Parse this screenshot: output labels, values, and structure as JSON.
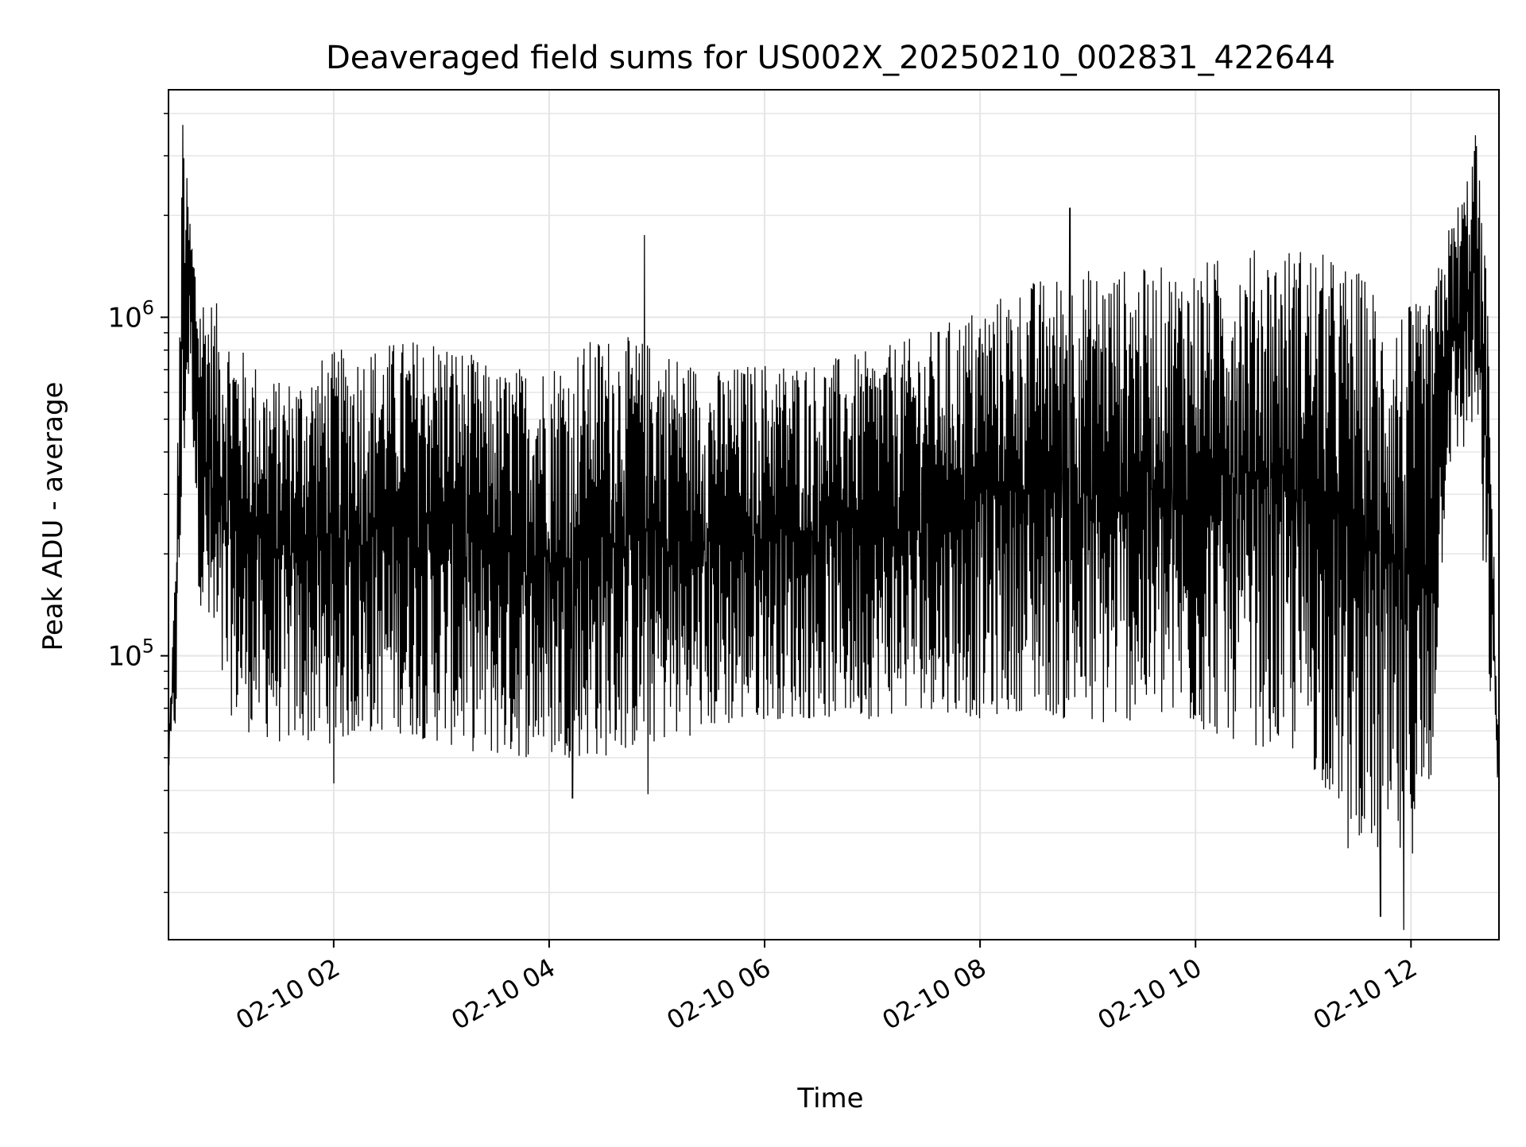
{
  "chart_data": {
    "type": "line",
    "title": "Deaveraged field sums for US002X_20250210_002831_422644",
    "xlabel": "Time",
    "ylabel": "Peak ADU - average",
    "x_axis_type": "datetime",
    "xlim": [
      "2025-02-10 00:28",
      "2025-02-10 12:49"
    ],
    "ylim": [
      14500,
      4700000
    ],
    "y_scale": "log",
    "grid": true,
    "legend": "none",
    "line_color": "#000000",
    "grid_color": "#e5e5e5",
    "x_ticks": [
      {
        "value": "2025-02-10 02:00",
        "label": "02-10 02"
      },
      {
        "value": "2025-02-10 04:00",
        "label": "02-10 04"
      },
      {
        "value": "2025-02-10 06:00",
        "label": "02-10 06"
      },
      {
        "value": "2025-02-10 08:00",
        "label": "02-10 08"
      },
      {
        "value": "2025-02-10 10:00",
        "label": "02-10 10"
      },
      {
        "value": "2025-02-10 12:00",
        "label": "02-10 12"
      }
    ],
    "y_ticks": [
      {
        "value": 100000,
        "base": "10",
        "exp": "5"
      },
      {
        "value": 1000000,
        "base": "10",
        "exp": "6"
      }
    ],
    "series": [
      {
        "envelope": [
          {
            "time": "2025-02-10 00:28",
            "low": 45000,
            "high": 55000
          },
          {
            "time": "2025-02-10 00:32",
            "low": 60000,
            "high": 200000
          },
          {
            "time": "2025-02-10 00:36",
            "low": 300000,
            "high": 3700000
          },
          {
            "time": "2025-02-10 00:40",
            "low": 750000,
            "high": 2000000
          },
          {
            "time": "2025-02-10 00:45",
            "low": 150000,
            "high": 1300000
          },
          {
            "time": "2025-02-10 00:55",
            "low": 75000,
            "high": 1100000
          },
          {
            "time": "2025-02-10 01:10",
            "low": 60000,
            "high": 800000
          },
          {
            "time": "2025-02-10 01:30",
            "low": 55000,
            "high": 650000
          },
          {
            "time": "2025-02-10 02:00",
            "low": 55000,
            "high": 800000
          },
          {
            "time": "2025-02-10 02:30",
            "low": 60000,
            "high": 850000
          },
          {
            "time": "2025-02-10 03:00",
            "low": 55000,
            "high": 900000
          },
          {
            "time": "2025-02-10 03:30",
            "low": 50000,
            "high": 700000
          },
          {
            "time": "2025-02-10 04:00",
            "low": 50000,
            "high": 750000
          },
          {
            "time": "2025-02-10 04:30",
            "low": 50000,
            "high": 900000
          },
          {
            "time": "2025-02-10 05:00",
            "low": 55000,
            "high": 850000
          },
          {
            "time": "2025-02-10 05:30",
            "low": 60000,
            "high": 700000
          },
          {
            "time": "2025-02-10 06:00",
            "low": 65000,
            "high": 750000
          },
          {
            "time": "2025-02-10 06:30",
            "low": 65000,
            "high": 750000
          },
          {
            "time": "2025-02-10 07:00",
            "low": 65000,
            "high": 800000
          },
          {
            "time": "2025-02-10 07:30",
            "low": 70000,
            "high": 900000
          },
          {
            "time": "2025-02-10 08:00",
            "low": 65000,
            "high": 1100000
          },
          {
            "time": "2025-02-10 08:30",
            "low": 70000,
            "high": 1300000
          },
          {
            "time": "2025-02-10 09:00",
            "low": 60000,
            "high": 1400000
          },
          {
            "time": "2025-02-10 09:30",
            "low": 65000,
            "high": 1400000
          },
          {
            "time": "2025-02-10 10:00",
            "low": 60000,
            "high": 1450000
          },
          {
            "time": "2025-02-10 10:30",
            "low": 55000,
            "high": 1600000
          },
          {
            "time": "2025-02-10 11:00",
            "low": 50000,
            "high": 1650000
          },
          {
            "time": "2025-02-10 11:30",
            "low": 30000,
            "high": 1400000
          },
          {
            "time": "2025-02-10 11:50",
            "low": 22000,
            "high": 1100000
          },
          {
            "time": "2025-02-10 12:10",
            "low": 30000,
            "high": 1100000
          },
          {
            "time": "2025-02-10 12:20",
            "low": 350000,
            "high": 1800000
          },
          {
            "time": "2025-02-10 12:30",
            "low": 400000,
            "high": 2500000
          },
          {
            "time": "2025-02-10 12:36",
            "low": 500000,
            "high": 3500000
          },
          {
            "time": "2025-02-10 12:42",
            "low": 100000,
            "high": 1500000
          },
          {
            "time": "2025-02-10 12:49",
            "low": 38000,
            "high": 50000
          }
        ],
        "spikes": [
          {
            "time": "2025-02-10 00:36",
            "value": 3700000
          },
          {
            "time": "2025-02-10 04:53",
            "value": 1750000
          },
          {
            "time": "2025-02-10 08:50",
            "value": 2100000
          },
          {
            "time": "2025-02-10 12:36",
            "value": 3450000
          },
          {
            "time": "2025-02-10 02:00",
            "value": 42000
          },
          {
            "time": "2025-02-10 04:13",
            "value": 38000
          },
          {
            "time": "2025-02-10 04:55",
            "value": 39000
          },
          {
            "time": "2025-02-10 11:43",
            "value": 17000
          },
          {
            "time": "2025-02-10 11:56",
            "value": 15500
          },
          {
            "time": "2025-02-10 11:25",
            "value": 27000
          }
        ]
      }
    ]
  }
}
